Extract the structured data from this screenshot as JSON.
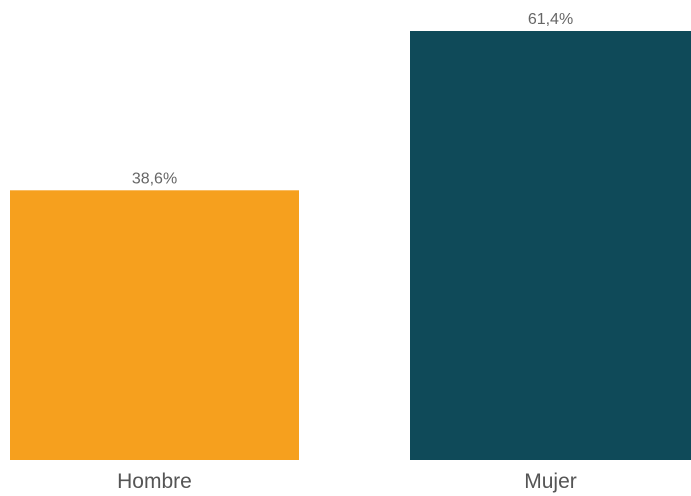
{
  "chart_data": {
    "type": "bar",
    "categories": [
      "Hombre",
      "Mujer"
    ],
    "values": [
      38.6,
      61.4
    ],
    "value_labels": [
      "38,6%",
      "61,4%"
    ],
    "colors": [
      "#F6A01E",
      "#0F4A59"
    ],
    "title": "",
    "xlabel": "",
    "ylabel": "",
    "ylim": [
      0,
      61.4
    ],
    "grid": false,
    "legend": "none"
  }
}
